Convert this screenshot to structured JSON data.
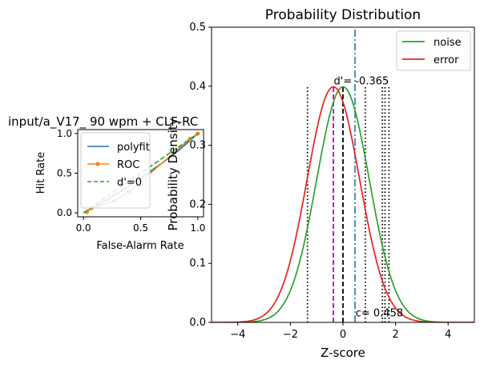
{
  "chart_data": [
    {
      "type": "line",
      "title": "input/a_V17_ 90 wpm + CLF-RC",
      "xlabel": "False-Alarm Rate",
      "ylabel": "Hit Rate",
      "xlim": [
        -0.05,
        1.05
      ],
      "ylim": [
        -0.05,
        1.05
      ],
      "x_ticks": [
        "0.0",
        "0.5",
        "1.0"
      ],
      "y_ticks": [
        "0.0",
        "0.5",
        "1.0"
      ],
      "x_tick_values": [
        0.0,
        0.5,
        1.0
      ],
      "y_tick_values": [
        0.0,
        0.5,
        1.0
      ],
      "legend": "upper left",
      "series": [
        {
          "name": "polyfit",
          "color": "#1f77b4",
          "style": "solid",
          "x": [
            0.0,
            0.1,
            0.2,
            0.3,
            0.4,
            0.5,
            0.6,
            0.7,
            0.8,
            0.9,
            1.0
          ],
          "y": [
            0.0,
            0.08,
            0.16,
            0.25,
            0.34,
            0.44,
            0.54,
            0.64,
            0.75,
            0.87,
            1.0
          ]
        },
        {
          "name": "ROC",
          "color": "#ff7f0e",
          "style": "solid-marker",
          "x": [
            0.03,
            0.07,
            0.27,
            0.4,
            0.93,
            1.0
          ],
          "y": [
            0.01,
            0.06,
            0.15,
            0.27,
            0.93,
            1.0
          ]
        },
        {
          "name": "d'=0",
          "color": "#2ca02c",
          "style": "dashed",
          "x": [
            0.0,
            1.0
          ],
          "y": [
            0.0,
            1.0
          ]
        }
      ]
    },
    {
      "type": "line",
      "title": "Probability Distribution",
      "xlabel": "Z-score",
      "ylabel": "Probability Density",
      "xlim": [
        -5,
        5
      ],
      "ylim": [
        0,
        0.5
      ],
      "x_ticks": [
        "−4",
        "−2",
        "0",
        "2",
        "4"
      ],
      "y_ticks": [
        "0.0",
        "0.1",
        "0.2",
        "0.3",
        "0.4",
        "0.5"
      ],
      "x_tick_values": [
        -4,
        -2,
        0,
        2,
        4
      ],
      "y_tick_values": [
        0,
        0.1,
        0.2,
        0.3,
        0.4,
        0.5
      ],
      "legend": "upper right",
      "series": [
        {
          "name": "noise",
          "color": "#2ca02c",
          "mean": 0.0,
          "sd": 1.0
        },
        {
          "name": "error",
          "color": "#e8231f",
          "mean": -0.365,
          "sd": 1.0
        }
      ],
      "vertical_lines": [
        {
          "x": 0.458,
          "ymax": 0.5,
          "color": "#1f77b4",
          "style": "dashdot"
        },
        {
          "x": -0.365,
          "ymax": 0.399,
          "color": "#bf00bf",
          "style": "dashed"
        },
        {
          "x": 0.0,
          "ymax": 0.399,
          "color": "#000000",
          "style": "dashed"
        },
        {
          "x": -1.35,
          "ymax": 0.4,
          "color": "#000000",
          "style": "dotted"
        },
        {
          "x": 0.85,
          "ymax": 0.4,
          "color": "#000000",
          "style": "dotted"
        },
        {
          "x": 1.5,
          "ymax": 0.4,
          "color": "#000000",
          "style": "dotted"
        },
        {
          "x": 1.6,
          "ymax": 0.4,
          "color": "#000000",
          "style": "dotted"
        },
        {
          "x": 1.75,
          "ymax": 0.4,
          "color": "#000000",
          "style": "dotted"
        }
      ],
      "annotations": [
        {
          "text": "d'= -0.365",
          "x": -0.35,
          "y": 0.403
        },
        {
          "text": "c= 0.458",
          "x": 0.48,
          "y": 0.01
        }
      ]
    }
  ]
}
